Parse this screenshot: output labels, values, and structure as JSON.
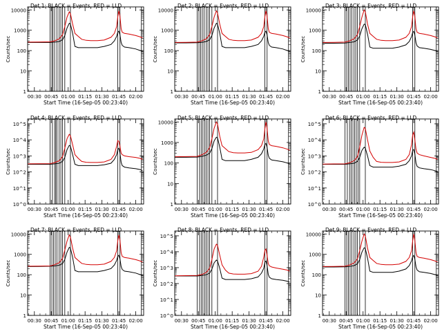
{
  "figure": {
    "xlabel": "Start Time (16-Sep-05 00:23:40)",
    "ylabel": "Counts/sec",
    "xticks": [
      "00:30",
      "00:45",
      "01:00",
      "01:15",
      "01:30",
      "01:45",
      "02:00"
    ],
    "xtick_minutes": [
      30,
      45,
      60,
      75,
      90,
      105,
      120
    ],
    "xrange_minutes": [
      24,
      127
    ],
    "colors": {
      "events": "#000000",
      "lld": "#d40000",
      "axes": "#000000"
    }
  },
  "chart_data": [
    {
      "type": "line",
      "title": "Det 1: BLACK = Events, RED = LLD",
      "ylim": [
        1,
        14000
      ],
      "ytick_style": "decimal",
      "yticks": [
        "1",
        "10",
        "100",
        "1000",
        "10000"
      ],
      "yscale": "log",
      "x": [
        24,
        34,
        44,
        48,
        52,
        55,
        57,
        59,
        61,
        62,
        64,
        66,
        69,
        72,
        76,
        80,
        86,
        92,
        98,
        101,
        103,
        104,
        105,
        106,
        107,
        108,
        110,
        114,
        120,
        124,
        126
      ],
      "series": [
        {
          "name": "Events",
          "values": [
            250,
            250,
            250,
            260,
            280,
            340,
            550,
            1300,
            2200,
            2000,
            700,
            160,
            140,
            140,
            140,
            140,
            140,
            160,
            200,
            300,
            500,
            800,
            900,
            600,
            250,
            180,
            150,
            140,
            120,
            100,
            90
          ]
        },
        {
          "name": "LLD",
          "values": [
            260,
            265,
            270,
            300,
            380,
            600,
            1500,
            4500,
            8000,
            6500,
            2000,
            700,
            500,
            360,
            320,
            310,
            310,
            330,
            450,
            700,
            1500,
            4500,
            9000,
            5000,
            1200,
            800,
            700,
            650,
            550,
            470,
            420
          ]
        }
      ],
      "vlines": [
        44,
        45.5,
        46.5,
        48,
        50,
        52,
        53.5,
        55,
        57,
        62,
        104,
        106,
        125
      ]
    },
    {
      "type": "line",
      "title": "Det 2: BLACK = Events, RED = LLD",
      "ylim": [
        1,
        14000
      ],
      "ytick_style": "decimal",
      "yticks": [
        "1",
        "10",
        "100",
        "1000",
        "10000"
      ],
      "yscale": "log",
      "x": [
        24,
        34,
        44,
        48,
        52,
        55,
        57,
        59,
        61,
        62,
        64,
        66,
        69,
        72,
        76,
        80,
        86,
        92,
        98,
        101,
        103,
        104,
        105,
        106,
        107,
        108,
        110,
        114,
        120,
        124,
        126
      ],
      "series": [
        {
          "name": "Events",
          "values": [
            240,
            240,
            245,
            255,
            280,
            340,
            550,
            1300,
            2200,
            2000,
            700,
            160,
            140,
            140,
            140,
            140,
            140,
            160,
            200,
            300,
            500,
            800,
            900,
            600,
            250,
            180,
            150,
            140,
            120,
            100,
            90
          ]
        },
        {
          "name": "LLD",
          "values": [
            250,
            255,
            260,
            300,
            380,
            600,
            1500,
            4500,
            9000,
            7000,
            2000,
            700,
            500,
            360,
            320,
            310,
            310,
            330,
            450,
            700,
            1500,
            4500,
            9000,
            5000,
            1200,
            800,
            700,
            650,
            550,
            470,
            420
          ]
        }
      ],
      "vlines": [
        44,
        45.5,
        47,
        48.5,
        50,
        52,
        53.5,
        55,
        57,
        62,
        104,
        106,
        125
      ]
    },
    {
      "type": "line",
      "title": "Det 3: BLACK = Events, RED = LLD",
      "ylim": [
        1,
        14000
      ],
      "ytick_style": "decimal",
      "yticks": [
        "1",
        "10",
        "100",
        "1000",
        "10000"
      ],
      "yscale": "log",
      "x": [
        24,
        34,
        44,
        48,
        52,
        55,
        57,
        59,
        61,
        62,
        64,
        66,
        69,
        72,
        76,
        80,
        86,
        92,
        98,
        101,
        103,
        104,
        105,
        106,
        107,
        108,
        110,
        114,
        120,
        124,
        126
      ],
      "series": [
        {
          "name": "Events",
          "values": [
            230,
            230,
            235,
            250,
            270,
            330,
            520,
            1200,
            2000,
            1900,
            650,
            150,
            130,
            130,
            130,
            130,
            130,
            150,
            190,
            280,
            480,
            780,
            880,
            580,
            240,
            170,
            140,
            130,
            115,
            100,
            90
          ]
        },
        {
          "name": "LLD",
          "values": [
            250,
            255,
            260,
            300,
            380,
            600,
            1500,
            4500,
            10000,
            8000,
            2000,
            700,
            500,
            360,
            320,
            310,
            310,
            330,
            450,
            700,
            1500,
            4500,
            9000,
            5000,
            1200,
            800,
            700,
            650,
            550,
            470,
            420
          ]
        }
      ],
      "vlines": [
        44,
        45.5,
        47,
        48.5,
        50,
        52,
        53.5,
        55,
        57,
        62,
        104,
        106,
        125
      ]
    },
    {
      "type": "line",
      "title": "Det 4: BLACK = Events, RED = LLD",
      "ylim": [
        1,
        200000
      ],
      "ytick_style": "power",
      "yticks": [
        "10^0",
        "10^1",
        "10^2",
        "10^3",
        "10^4",
        "10^5"
      ],
      "yscale": "log",
      "x": [
        24,
        34,
        44,
        48,
        52,
        55,
        57,
        59,
        61,
        62,
        64,
        66,
        69,
        72,
        76,
        80,
        86,
        92,
        98,
        101,
        103,
        104,
        105,
        106,
        107,
        108,
        110,
        114,
        120,
        124,
        126
      ],
      "series": [
        {
          "name": "Events",
          "values": [
            300,
            300,
            300,
            320,
            350,
            450,
            800,
            2500,
            4500,
            4000,
            1200,
            300,
            250,
            250,
            250,
            250,
            250,
            280,
            350,
            600,
            1200,
            2500,
            3000,
            1500,
            400,
            250,
            200,
            180,
            160,
            140,
            120
          ]
        },
        {
          "name": "LLD",
          "values": [
            320,
            325,
            330,
            380,
            500,
            900,
            3000,
            12000,
            22000,
            18000,
            5000,
            1200,
            700,
            450,
            400,
            390,
            390,
            420,
            600,
            1200,
            4000,
            9000,
            8000,
            4000,
            1500,
            1200,
            1000,
            900,
            800,
            700,
            600
          ]
        }
      ],
      "vlines": [
        44,
        46,
        48,
        49,
        50,
        52,
        53.5,
        55,
        57,
        62,
        104,
        106,
        125
      ]
    },
    {
      "type": "line",
      "title": "Det 5: BLACK = Events, RED = LLD",
      "ylim": [
        1,
        14000
      ],
      "ytick_style": "decimal",
      "yticks": [
        "1",
        "10",
        "100",
        "1000",
        "10000"
      ],
      "yscale": "log",
      "x": [
        24,
        34,
        44,
        48,
        52,
        55,
        57,
        59,
        61,
        62,
        64,
        66,
        69,
        72,
        76,
        80,
        86,
        92,
        98,
        101,
        103,
        104,
        105,
        106,
        107,
        108,
        110,
        114,
        120,
        124,
        126
      ],
      "series": [
        {
          "name": "Events",
          "values": [
            190,
            190,
            195,
            210,
            240,
            300,
            500,
            1200,
            1800,
            1700,
            600,
            150,
            130,
            130,
            130,
            130,
            130,
            150,
            190,
            280,
            480,
            800,
            900,
            580,
            240,
            170,
            140,
            130,
            115,
            100,
            90
          ]
        },
        {
          "name": "LLD",
          "values": [
            200,
            205,
            210,
            250,
            330,
            550,
            1500,
            5000,
            10000,
            8000,
            2000,
            700,
            500,
            360,
            320,
            310,
            310,
            330,
            450,
            700,
            1500,
            4500,
            10000,
            5000,
            1200,
            800,
            700,
            650,
            550,
            470,
            420
          ]
        }
      ],
      "vlines": [
        44,
        46,
        47.5,
        49,
        50.5,
        52,
        53.5,
        55,
        57,
        62,
        104,
        106,
        125
      ]
    },
    {
      "type": "line",
      "title": "Det 6: BLACK = Events, RED = LLD",
      "ylim": [
        1,
        200000
      ],
      "ytick_style": "power",
      "yticks": [
        "10^0",
        "10^1",
        "10^2",
        "10^3",
        "10^4",
        "10^5"
      ],
      "yscale": "log",
      "x": [
        24,
        34,
        44,
        48,
        52,
        55,
        57,
        59,
        61,
        62,
        64,
        66,
        69,
        72,
        76,
        80,
        86,
        92,
        98,
        101,
        103,
        104,
        105,
        106,
        107,
        108,
        110,
        114,
        120,
        124,
        126
      ],
      "series": [
        {
          "name": "Events",
          "values": [
            300,
            300,
            300,
            320,
            350,
            450,
            800,
            2200,
            3500,
            3000,
            1000,
            250,
            200,
            200,
            200,
            200,
            200,
            230,
            300,
            500,
            1000,
            2200,
            2500,
            1300,
            350,
            220,
            180,
            160,
            140,
            120,
            110
          ]
        },
        {
          "name": "LLD",
          "values": [
            310,
            315,
            320,
            370,
            500,
            900,
            3500,
            20000,
            60000,
            50000,
            10000,
            2000,
            800,
            450,
            400,
            390,
            390,
            420,
            600,
            1200,
            5000,
            20000,
            30000,
            10000,
            2500,
            1500,
            1200,
            1000,
            800,
            700,
            600
          ]
        }
      ],
      "vlines": [
        44,
        46,
        48,
        49.5,
        51,
        52.5,
        54,
        55.5,
        57,
        62,
        104,
        106,
        125
      ]
    },
    {
      "type": "line",
      "title": "Det 7: BLACK = Events, RED = LLD",
      "ylim": [
        1,
        14000
      ],
      "ytick_style": "decimal",
      "yticks": [
        "1",
        "10",
        "100",
        "1000",
        "10000"
      ],
      "yscale": "log",
      "x": [
        24,
        34,
        44,
        48,
        52,
        55,
        57,
        59,
        61,
        62,
        64,
        66,
        69,
        72,
        76,
        80,
        86,
        92,
        98,
        101,
        103,
        104,
        105,
        106,
        107,
        108,
        110,
        114,
        120,
        124,
        126
      ],
      "series": [
        {
          "name": "Events",
          "values": [
            250,
            255,
            260,
            270,
            290,
            350,
            560,
            1300,
            2200,
            2000,
            700,
            160,
            140,
            140,
            140,
            140,
            140,
            160,
            200,
            300,
            500,
            800,
            900,
            600,
            250,
            180,
            150,
            140,
            120,
            100,
            90
          ]
        },
        {
          "name": "LLD",
          "values": [
            260,
            265,
            270,
            310,
            390,
            620,
            1600,
            4500,
            9000,
            7000,
            2000,
            700,
            500,
            360,
            320,
            310,
            310,
            330,
            450,
            700,
            1500,
            4500,
            9000,
            5000,
            1200,
            800,
            700,
            650,
            550,
            470,
            420
          ]
        }
      ],
      "vlines": [
        44,
        45.5,
        47,
        48.5,
        50,
        52,
        53.5,
        55,
        57,
        62,
        104,
        106,
        125
      ]
    },
    {
      "type": "line",
      "title": "Det 8: BLACK = Events, RED = LLD",
      "ylim": [
        1,
        200000
      ],
      "ytick_style": "power",
      "yticks": [
        "10^0",
        "10^1",
        "10^2",
        "10^3",
        "10^4",
        "10^5"
      ],
      "yscale": "log",
      "x": [
        24,
        34,
        44,
        48,
        52,
        55,
        57,
        59,
        61,
        62,
        64,
        66,
        69,
        72,
        76,
        80,
        86,
        92,
        98,
        101,
        103,
        104,
        105,
        106,
        107,
        108,
        110,
        114,
        120,
        124,
        126
      ],
      "series": [
        {
          "name": "Events",
          "values": [
            300,
            300,
            300,
            320,
            360,
            450,
            800,
            2000,
            3000,
            2600,
            900,
            220,
            180,
            180,
            180,
            180,
            180,
            200,
            260,
            450,
            900,
            2200,
            2600,
            1400,
            380,
            250,
            200,
            180,
            160,
            140,
            120
          ]
        },
        {
          "name": "LLD",
          "values": [
            310,
            315,
            320,
            370,
            500,
            900,
            3200,
            15000,
            30000,
            25000,
            6000,
            1500,
            700,
            450,
            400,
            390,
            390,
            420,
            600,
            1200,
            4500,
            12000,
            15000,
            6000,
            1800,
            1300,
            1100,
            950,
            800,
            700,
            600
          ]
        }
      ],
      "vlines": [
        44,
        46,
        47.5,
        49,
        50.5,
        52,
        53.5,
        55,
        57,
        62,
        104,
        106,
        125
      ]
    },
    {
      "type": "line",
      "title": "Det 9: BLACK = Events, RED = LLD",
      "ylim": [
        1,
        14000
      ],
      "ytick_style": "decimal",
      "yticks": [
        "1",
        "10",
        "100",
        "1000",
        "10000"
      ],
      "yscale": "log",
      "x": [
        24,
        34,
        44,
        48,
        52,
        55,
        57,
        59,
        61,
        62,
        64,
        66,
        69,
        72,
        76,
        80,
        86,
        92,
        98,
        101,
        103,
        104,
        105,
        106,
        107,
        108,
        110,
        114,
        120,
        124,
        126
      ],
      "series": [
        {
          "name": "Events",
          "values": [
            240,
            240,
            245,
            255,
            280,
            340,
            550,
            1300,
            2100,
            1900,
            650,
            150,
            130,
            130,
            130,
            130,
            130,
            150,
            190,
            280,
            480,
            780,
            880,
            580,
            240,
            170,
            140,
            130,
            115,
            100,
            90
          ]
        },
        {
          "name": "LLD",
          "values": [
            250,
            255,
            260,
            300,
            380,
            600,
            1500,
            4500,
            10000,
            8000,
            2000,
            700,
            500,
            360,
            320,
            310,
            310,
            330,
            450,
            700,
            1500,
            4500,
            10000,
            5000,
            1200,
            800,
            700,
            650,
            550,
            470,
            420
          ]
        }
      ],
      "vlines": [
        44,
        45.5,
        47,
        48.5,
        50,
        52,
        53.5,
        55,
        57,
        62,
        104,
        106,
        125
      ]
    }
  ]
}
